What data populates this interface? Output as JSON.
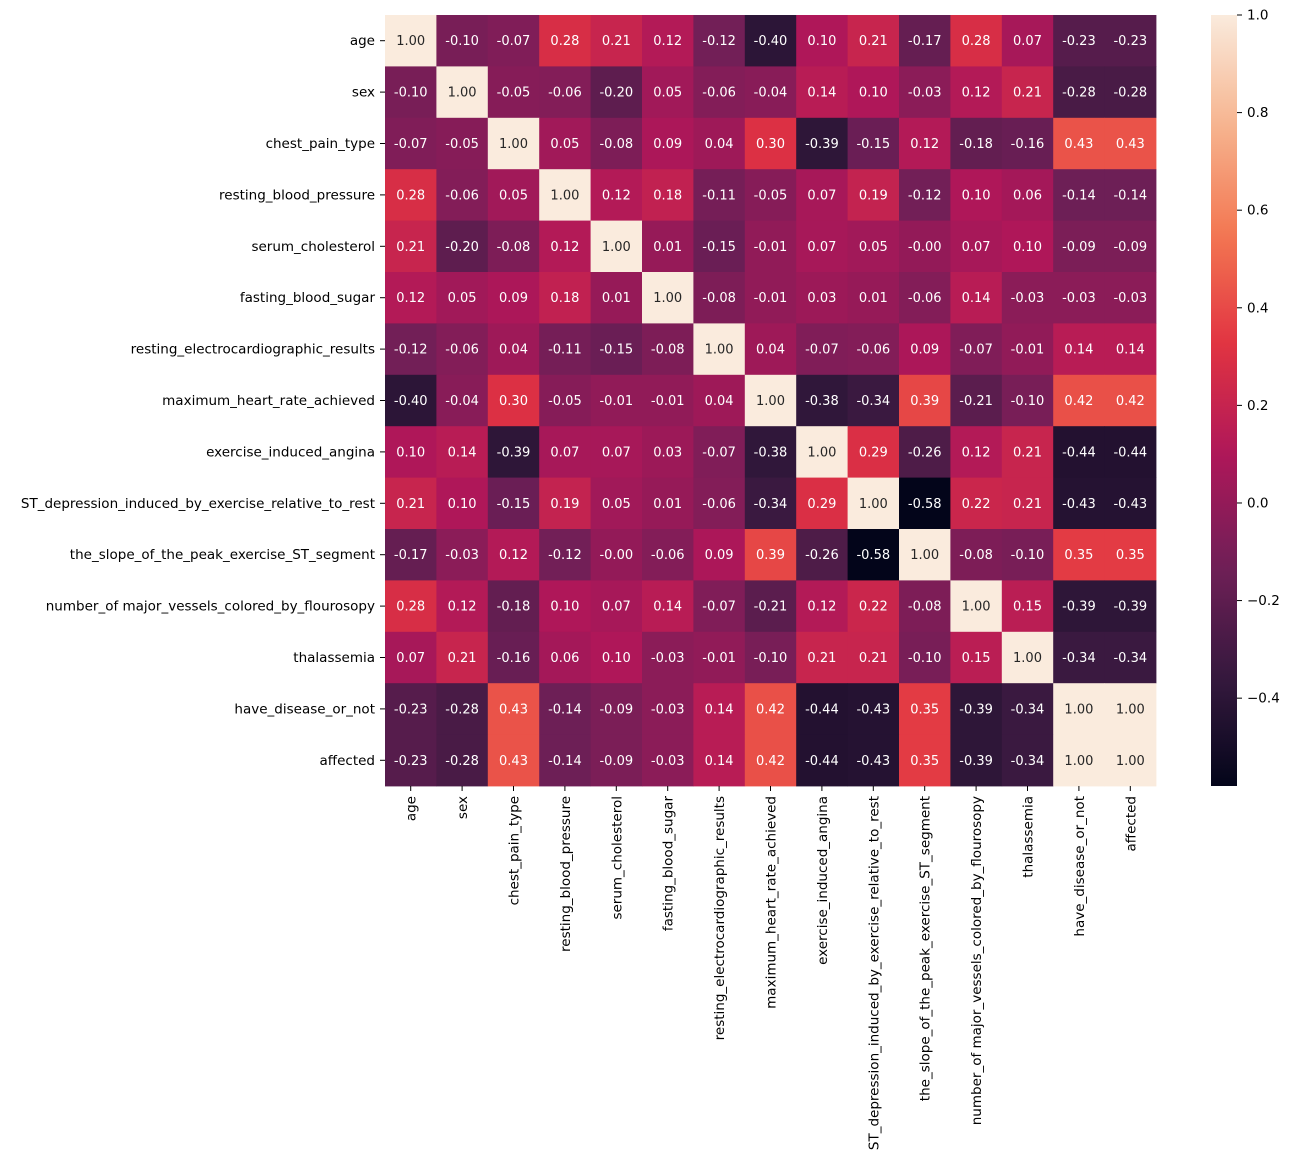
{
  "chart_data": {
    "type": "heatmap",
    "title": "",
    "xlabel": "",
    "ylabel": "",
    "labels": [
      "age",
      "sex",
      "chest_pain_type",
      "resting_blood_pressure",
      "serum_cholesterol",
      "fasting_blood_sugar",
      "resting_electrocardiographic_results",
      "maximum_heart_rate_achieved",
      "exercise_induced_angina",
      "ST_depression_induced_by_exercise_relative_to_rest",
      "the_slope_of_the_peak_exercise_ST_segment ",
      "number_of major_vessels_colored_by_flourosopy",
      "thalassemia",
      "have_disease_or_not",
      "affected"
    ],
    "values": [
      [
        1.0,
        -0.1,
        -0.07,
        0.28,
        0.21,
        0.12,
        -0.12,
        -0.4,
        0.1,
        0.21,
        -0.17,
        0.28,
        0.07,
        -0.23,
        -0.23
      ],
      [
        -0.1,
        1.0,
        -0.05,
        -0.06,
        -0.2,
        0.05,
        -0.06,
        -0.04,
        0.14,
        0.1,
        -0.03,
        0.12,
        0.21,
        -0.28,
        -0.28
      ],
      [
        -0.07,
        -0.05,
        1.0,
        0.05,
        -0.08,
        0.09,
        0.04,
        0.3,
        -0.39,
        -0.15,
        0.12,
        -0.18,
        -0.16,
        0.43,
        0.43
      ],
      [
        0.28,
        -0.06,
        0.05,
        1.0,
        0.12,
        0.18,
        -0.11,
        -0.05,
        0.07,
        0.19,
        -0.12,
        0.1,
        0.06,
        -0.14,
        -0.14
      ],
      [
        0.21,
        -0.2,
        -0.08,
        0.12,
        1.0,
        0.01,
        -0.15,
        -0.01,
        0.07,
        0.05,
        -0.0,
        0.07,
        0.1,
        -0.09,
        -0.09
      ],
      [
        0.12,
        0.05,
        0.09,
        0.18,
        0.01,
        1.0,
        -0.08,
        -0.01,
        0.03,
        0.01,
        -0.06,
        0.14,
        -0.03,
        -0.03,
        -0.03
      ],
      [
        -0.12,
        -0.06,
        0.04,
        -0.11,
        -0.15,
        -0.08,
        1.0,
        0.04,
        -0.07,
        -0.06,
        0.09,
        -0.07,
        -0.01,
        0.14,
        0.14
      ],
      [
        -0.4,
        -0.04,
        0.3,
        -0.05,
        -0.01,
        -0.01,
        0.04,
        1.0,
        -0.38,
        -0.34,
        0.39,
        -0.21,
        -0.1,
        0.42,
        0.42
      ],
      [
        0.1,
        0.14,
        -0.39,
        0.07,
        0.07,
        0.03,
        -0.07,
        -0.38,
        1.0,
        0.29,
        -0.26,
        0.12,
        0.21,
        -0.44,
        -0.44
      ],
      [
        0.21,
        0.1,
        -0.15,
        0.19,
        0.05,
        0.01,
        -0.06,
        -0.34,
        0.29,
        1.0,
        -0.58,
        0.22,
        0.21,
        -0.43,
        -0.43
      ],
      [
        -0.17,
        -0.03,
        0.12,
        -0.12,
        -0.0,
        -0.06,
        0.09,
        0.39,
        -0.26,
        -0.58,
        1.0,
        -0.08,
        -0.1,
        0.35,
        0.35
      ],
      [
        0.28,
        0.12,
        -0.18,
        0.1,
        0.07,
        0.14,
        -0.07,
        -0.21,
        0.12,
        0.22,
        -0.08,
        1.0,
        0.15,
        -0.39,
        -0.39
      ],
      [
        0.07,
        0.21,
        -0.16,
        0.06,
        0.1,
        -0.03,
        -0.01,
        -0.1,
        0.21,
        0.21,
        -0.1,
        0.15,
        1.0,
        -0.34,
        -0.34
      ],
      [
        -0.23,
        -0.28,
        0.43,
        -0.14,
        -0.09,
        -0.03,
        0.14,
        0.42,
        -0.44,
        -0.43,
        0.35,
        -0.39,
        -0.34,
        1.0,
        1.0
      ],
      [
        -0.23,
        -0.28,
        0.43,
        -0.14,
        -0.09,
        -0.03,
        0.14,
        0.42,
        -0.44,
        -0.43,
        0.35,
        -0.39,
        -0.34,
        1.0,
        1.0
      ]
    ],
    "vmin": -0.58,
    "vmax": 1.0,
    "annot_format": "0.00",
    "colormap": "rocket",
    "colormap_stops": [
      "#03051a",
      "#36193e",
      "#701f57",
      "#ae1759",
      "#e13342",
      "#f37651",
      "#f6b48f",
      "#faebdd"
    ],
    "colorbar": {
      "ticks": [
        -0.4,
        -0.2,
        0.0,
        0.2,
        0.4,
        0.6,
        0.8,
        1.0
      ],
      "tick_labels": [
        "−0.4",
        "−0.2",
        "0.0",
        "0.2",
        "0.4",
        "0.6",
        "0.8",
        "1.0"
      ],
      "placement": "right"
    },
    "grid": false,
    "legend": "none"
  }
}
